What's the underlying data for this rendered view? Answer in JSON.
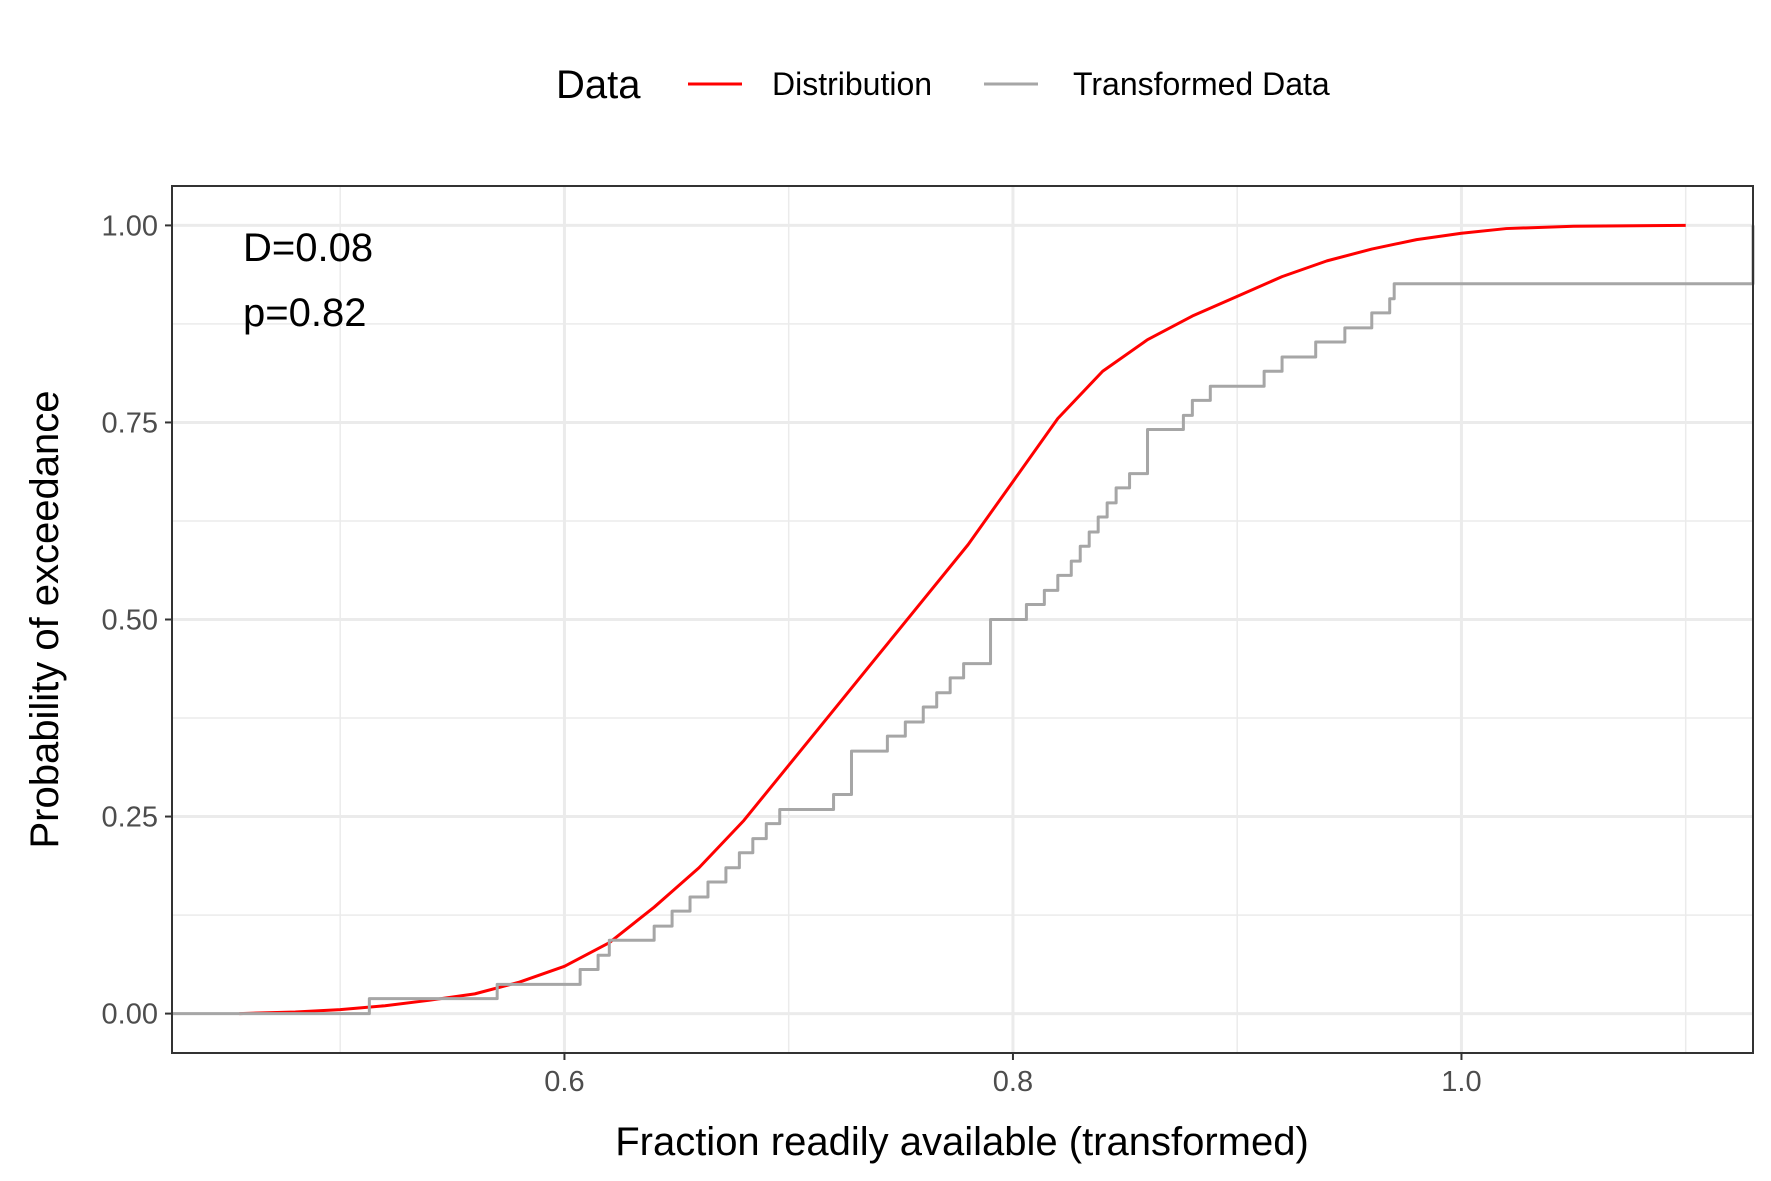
{
  "chart_data": {
    "type": "line",
    "title": "",
    "xlabel": "Fraction readily available (transformed)",
    "ylabel": "Probability of exceedance",
    "xlim": [
      0.425,
      1.13
    ],
    "ylim": [
      -0.05,
      1.05
    ],
    "x_ticks": [
      0.6,
      0.8,
      1.0
    ],
    "x_tick_labels": [
      "0.6",
      "0.8",
      "1.0"
    ],
    "y_ticks": [
      0.0,
      0.25,
      0.5,
      0.75,
      1.0
    ],
    "y_tick_labels": [
      "0.00",
      "0.25",
      "0.50",
      "0.75",
      "1.00"
    ],
    "grid": true,
    "legend": {
      "title": "Data",
      "position": "top",
      "entries": [
        {
          "label": "Distribution",
          "color": "#ff0000"
        },
        {
          "label": "Transformed Data",
          "color": "#a6a6a6"
        }
      ]
    },
    "annotations": [
      "D=0.08",
      "p=0.82"
    ],
    "series": [
      {
        "name": "Distribution",
        "color": "#ff0000",
        "x": [
          0.455,
          0.48,
          0.5,
          0.52,
          0.54,
          0.56,
          0.58,
          0.6,
          0.62,
          0.64,
          0.66,
          0.68,
          0.7,
          0.72,
          0.74,
          0.76,
          0.78,
          0.8,
          0.82,
          0.84,
          0.86,
          0.88,
          0.9,
          0.92,
          0.94,
          0.96,
          0.98,
          1.0,
          1.02,
          1.05,
          1.1
        ],
        "y": [
          0.0,
          0.002,
          0.005,
          0.01,
          0.017,
          0.025,
          0.04,
          0.06,
          0.09,
          0.135,
          0.185,
          0.245,
          0.315,
          0.385,
          0.455,
          0.525,
          0.595,
          0.675,
          0.755,
          0.815,
          0.855,
          0.885,
          0.91,
          0.935,
          0.955,
          0.97,
          0.982,
          0.99,
          0.996,
          0.999,
          1.0
        ]
      },
      {
        "name": "Transformed Data",
        "color": "#a6a6a6",
        "step": true,
        "x": [
          0.425,
          0.513,
          0.57,
          0.607,
          0.615,
          0.62,
          0.64,
          0.648,
          0.656,
          0.664,
          0.672,
          0.678,
          0.684,
          0.69,
          0.696,
          0.72,
          0.728,
          0.744,
          0.752,
          0.76,
          0.766,
          0.772,
          0.778,
          0.79,
          0.806,
          0.814,
          0.82,
          0.826,
          0.83,
          0.834,
          0.838,
          0.842,
          0.846,
          0.852,
          0.86,
          0.876,
          0.88,
          0.888,
          0.912,
          0.92,
          0.935,
          0.948,
          0.96,
          0.968,
          0.97,
          1.13
        ],
        "y": [
          0.0,
          0.019,
          0.037,
          0.056,
          0.074,
          0.093,
          0.111,
          0.13,
          0.148,
          0.167,
          0.185,
          0.204,
          0.222,
          0.241,
          0.259,
          0.278,
          0.333,
          0.352,
          0.37,
          0.389,
          0.407,
          0.426,
          0.444,
          0.5,
          0.519,
          0.537,
          0.556,
          0.574,
          0.593,
          0.611,
          0.63,
          0.648,
          0.667,
          0.685,
          0.741,
          0.759,
          0.778,
          0.796,
          0.815,
          0.833,
          0.852,
          0.87,
          0.889,
          0.907,
          0.926,
          1.0
        ]
      }
    ]
  }
}
